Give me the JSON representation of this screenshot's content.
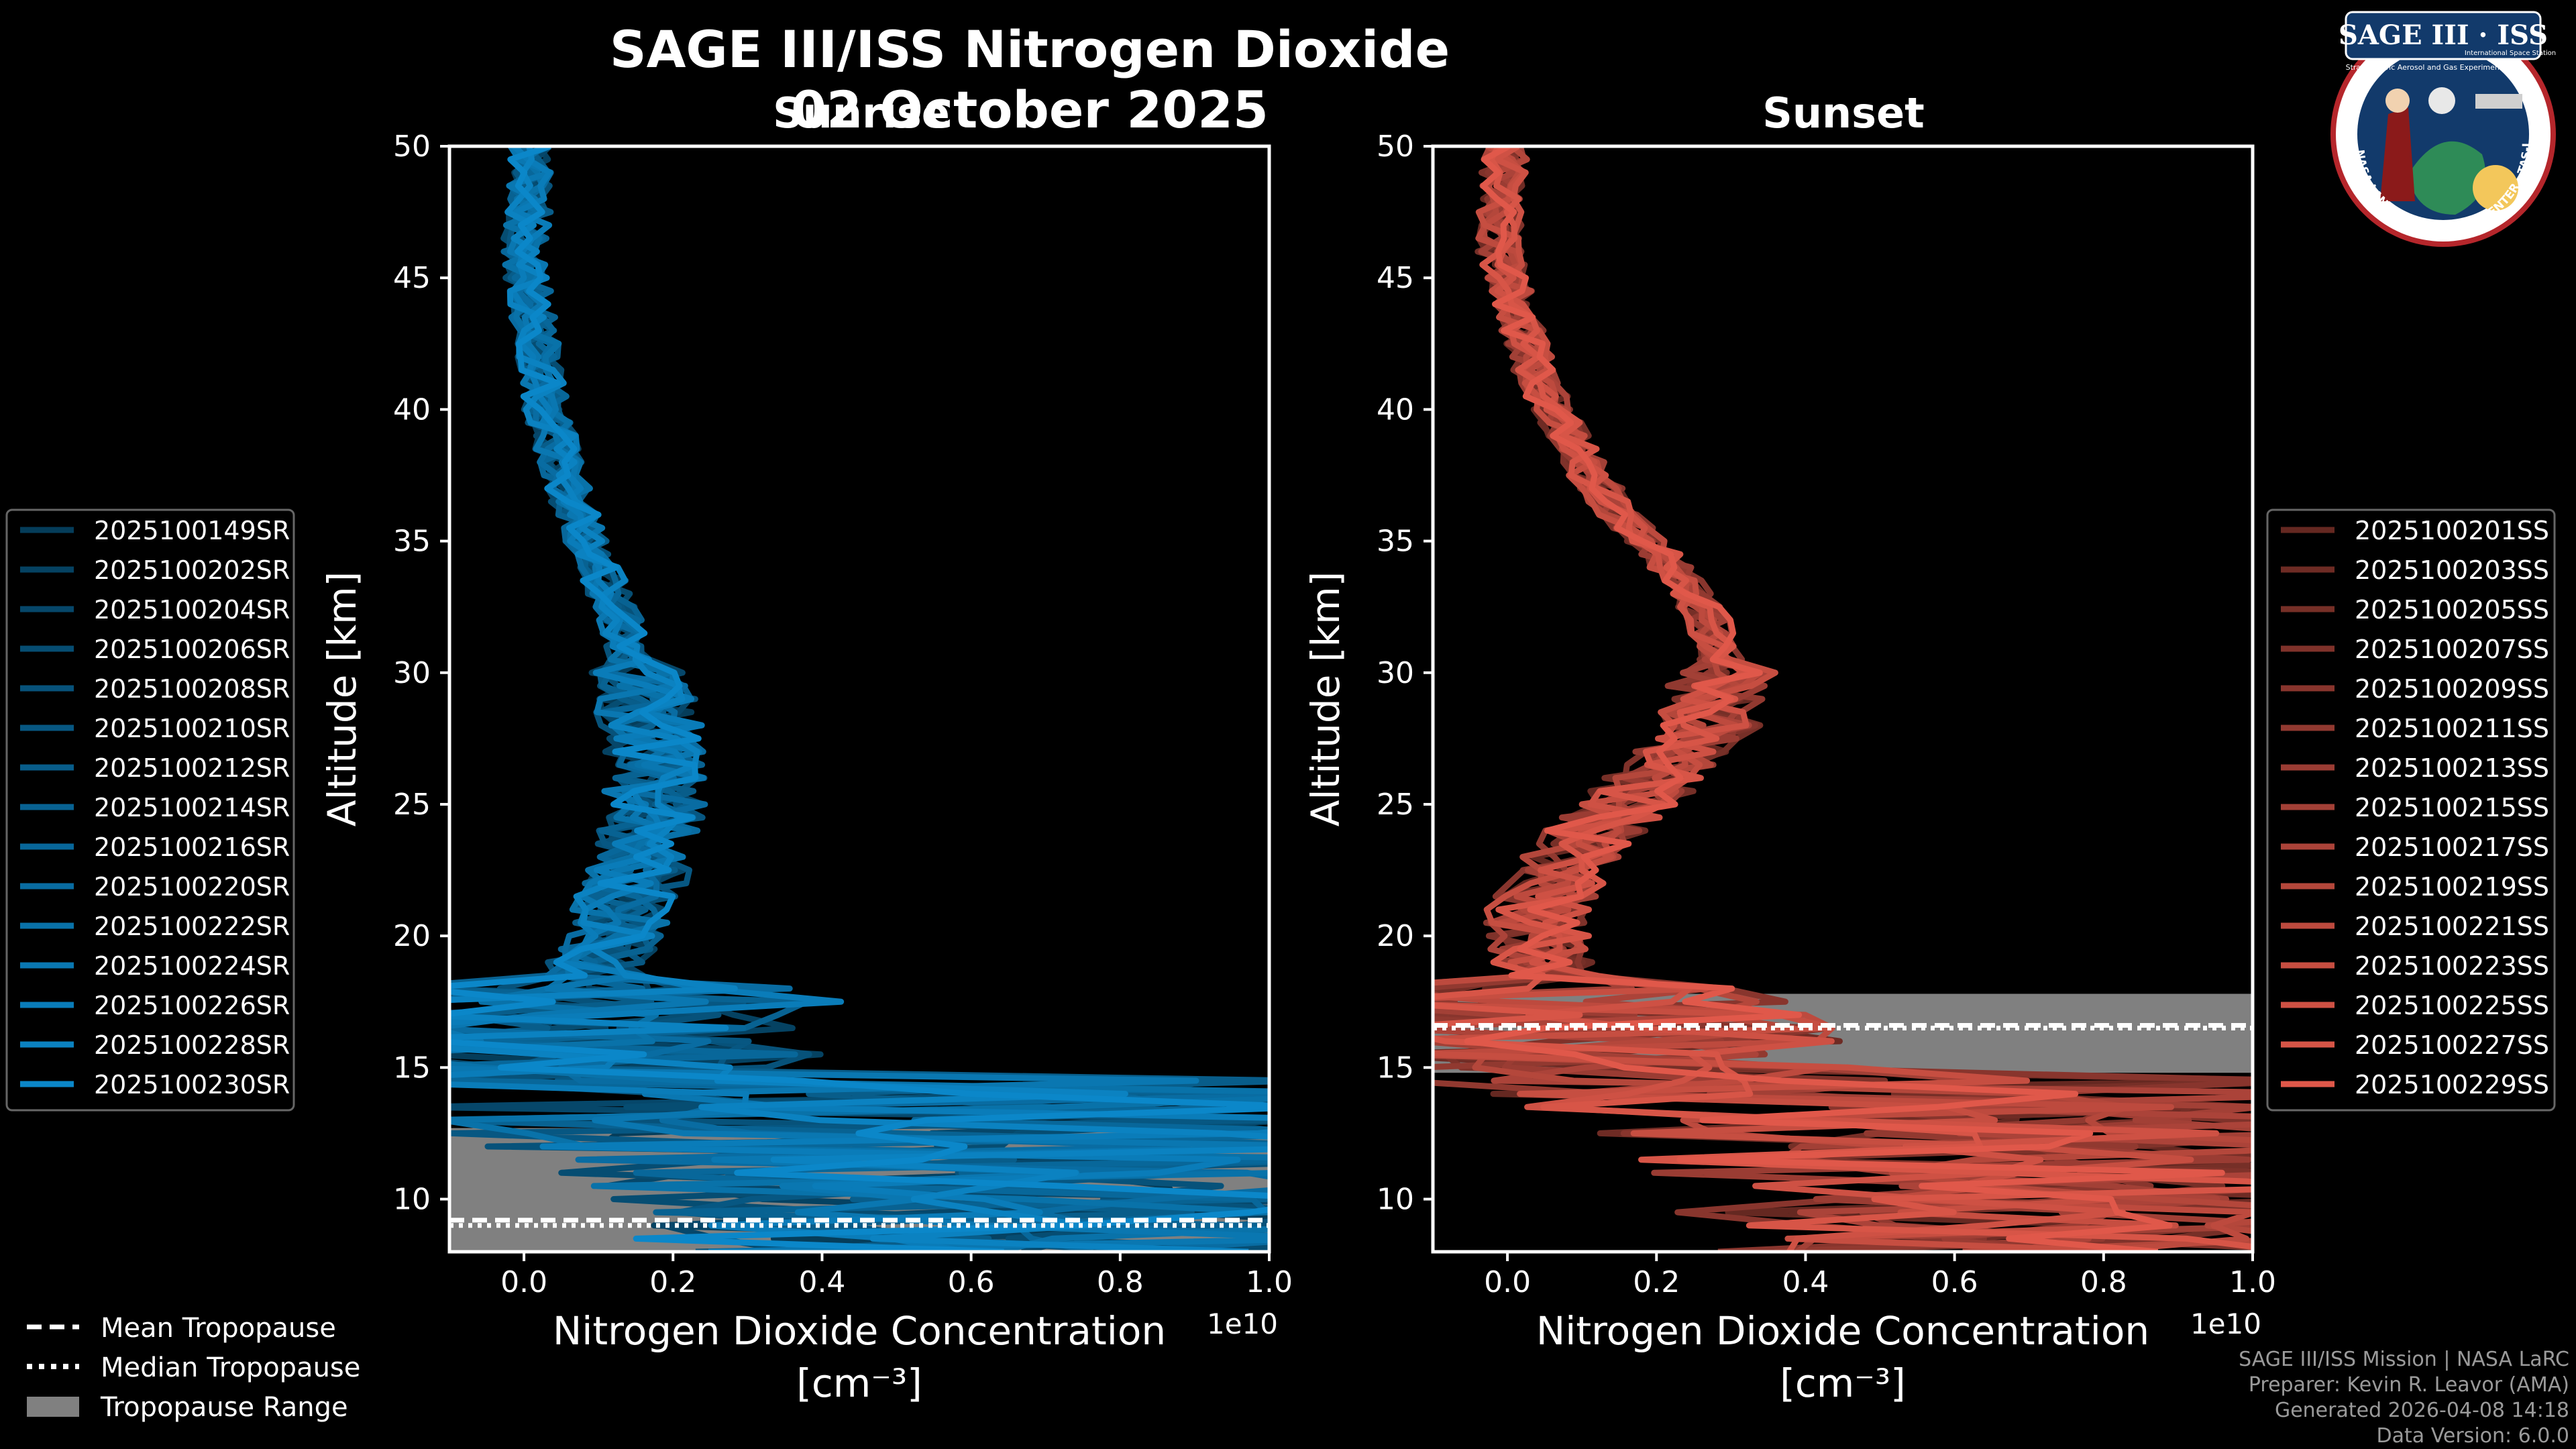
{
  "header": {
    "title": "SAGE III/ISS Nitrogen Dioxide",
    "date": "02 October 2025"
  },
  "logo": {
    "title": "SAGE III · ISS",
    "subtitle": "Stratospheric Aerosol and Gas Experiment III",
    "subtitle2": "International Space Station",
    "ring": "BALL · NASA LANGLEY RESEARCH CENTER · TAS-I · ESA"
  },
  "colors": {
    "background": "#000000",
    "sunrise_series": "#0b87c9",
    "sunset_series": "#e0584a",
    "tropopause_range": "#808080",
    "frame": "#ffffff"
  },
  "legend_bottom": {
    "mean": "Mean Tropopause",
    "median": "Median Tropopause",
    "range": "Tropopause Range"
  },
  "footer": {
    "line1": "SAGE III/ISS Mission | NASA LaRC",
    "line2": "Preparer: Kevin R. Leavor (AMA)",
    "line3": "Generated 2026-04-08 14:18",
    "line4": "Data Version: 6.0.0"
  },
  "chart_data": [
    {
      "type": "line",
      "panel": "sunrise",
      "title": "Sunrise",
      "xlabel": "Nitrogen Dioxide Concentration",
      "xunit": "[cm⁻³]",
      "xscale_label": "1e10",
      "ylabel": "Altitude [km]",
      "xlim": [
        -0.1,
        1.0
      ],
      "ylim": [
        8,
        50
      ],
      "xticks": [
        0.0,
        0.2,
        0.4,
        0.6,
        0.8,
        1.0
      ],
      "xtick_labels": [
        "0.0",
        "0.2",
        "0.4",
        "0.6",
        "0.8",
        "1.0"
      ],
      "yticks": [
        10,
        15,
        20,
        25,
        30,
        35,
        40,
        45,
        50
      ],
      "ytick_labels": [
        "10",
        "15",
        "20",
        "25",
        "30",
        "35",
        "40",
        "45",
        "50"
      ],
      "tropopause": {
        "mean": 9.2,
        "median": 9.0,
        "range": [
          8.0,
          12.7
        ]
      },
      "legend": [
        "2025100149SR",
        "2025100202SR",
        "2025100204SR",
        "2025100206SR",
        "2025100208SR",
        "2025100210SR",
        "2025100212SR",
        "2025100214SR",
        "2025100216SR",
        "2025100220SR",
        "2025100222SR",
        "2025100224SR",
        "2025100226SR",
        "2025100228SR",
        "2025100230SR"
      ],
      "profile_altitudes": [
        50,
        48,
        46,
        44,
        42,
        40,
        38,
        36,
        34,
        32,
        30,
        28,
        26,
        24,
        22,
        21,
        20,
        19,
        18,
        17,
        16,
        15,
        14,
        13,
        12,
        11,
        10,
        9
      ],
      "mean_profile": [
        0.01,
        0.01,
        0.0,
        0.01,
        0.02,
        0.03,
        0.05,
        0.07,
        0.1,
        0.13,
        0.15,
        0.17,
        0.18,
        0.17,
        0.15,
        0.13,
        0.12,
        0.1,
        0.09,
        0.08,
        0.06,
        0.05,
        0.08,
        0.2,
        0.3,
        0.4,
        0.45,
        0.5
      ]
    },
    {
      "type": "line",
      "panel": "sunset",
      "title": "Sunset",
      "xlabel": "Nitrogen Dioxide Concentration",
      "xunit": "[cm⁻³]",
      "xscale_label": "1e10",
      "ylabel": "Altitude [km]",
      "xlim": [
        -0.1,
        1.0
      ],
      "ylim": [
        8,
        50
      ],
      "xticks": [
        0.0,
        0.2,
        0.4,
        0.6,
        0.8,
        1.0
      ],
      "xtick_labels": [
        "0.0",
        "0.2",
        "0.4",
        "0.6",
        "0.8",
        "1.0"
      ],
      "yticks": [
        10,
        15,
        20,
        25,
        30,
        35,
        40,
        45,
        50
      ],
      "ytick_labels": [
        "10",
        "15",
        "20",
        "25",
        "30",
        "35",
        "40",
        "45",
        "50"
      ],
      "tropopause": {
        "mean": 16.6,
        "median": 16.5,
        "range": [
          14.8,
          17.8
        ]
      },
      "legend": [
        "2025100201SS",
        "2025100203SS",
        "2025100205SS",
        "2025100207SS",
        "2025100209SS",
        "2025100211SS",
        "2025100213SS",
        "2025100215SS",
        "2025100217SS",
        "2025100219SS",
        "2025100221SS",
        "2025100223SS",
        "2025100225SS",
        "2025100227SS",
        "2025100229SS"
      ],
      "profile_altitudes": [
        50,
        48,
        46,
        44,
        42,
        40,
        38,
        36,
        34,
        32,
        30,
        28,
        26,
        24,
        22,
        21,
        20,
        19,
        18,
        17,
        16,
        15,
        14,
        13,
        12,
        11,
        10,
        9
      ],
      "mean_profile": [
        0.0,
        -0.01,
        -0.01,
        0.01,
        0.03,
        0.06,
        0.1,
        0.15,
        0.22,
        0.27,
        0.29,
        0.27,
        0.2,
        0.12,
        0.06,
        0.04,
        0.04,
        0.05,
        0.07,
        0.08,
        0.1,
        0.12,
        0.2,
        0.35,
        0.45,
        0.5,
        0.55,
        0.6
      ]
    }
  ]
}
